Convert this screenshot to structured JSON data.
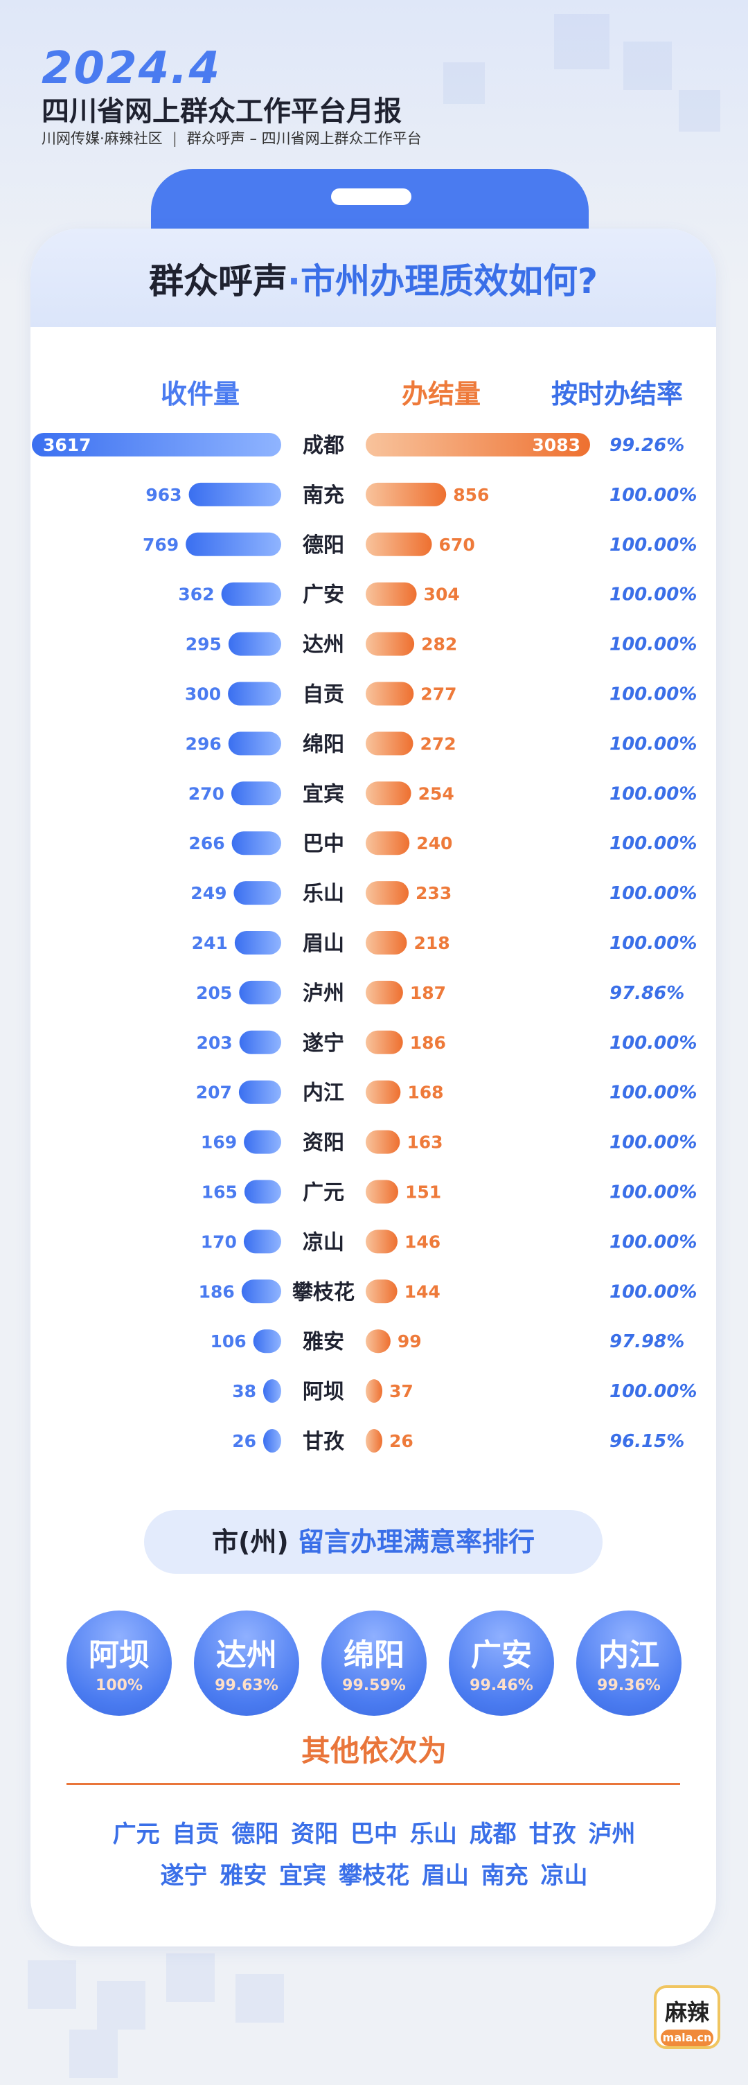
{
  "report": {
    "year_month": "2024.4",
    "title": "四川省网上群众工作平台月报",
    "subtitle_left": "川网传媒·麻辣社区",
    "subtitle_divider": "|",
    "subtitle_right": "群众呼声 – 四川省网上群众工作平台"
  },
  "card": {
    "title_part1": "群众呼声",
    "title_dot": "·",
    "title_part2": "市州办理质效如何?"
  },
  "colors": {
    "blue": "#4a7bf0",
    "orange": "#ee7a3a",
    "rate_blue": "#3a6fe8"
  },
  "chart_data": {
    "type": "bar",
    "column_headers": {
      "received": "收件量",
      "closed": "办结量",
      "rate": "按时办结率"
    },
    "categories": [
      "成都",
      "南充",
      "德阳",
      "广安",
      "达州",
      "自贡",
      "绵阳",
      "宜宾",
      "巴中",
      "乐山",
      "眉山",
      "泸州",
      "遂宁",
      "内江",
      "资阳",
      "广元",
      "凉山",
      "攀枝花",
      "雅安",
      "阿坝",
      "甘孜"
    ],
    "series": [
      {
        "name": "收件量",
        "values": [
          3617,
          963,
          769,
          362,
          295,
          300,
          296,
          270,
          266,
          249,
          241,
          205,
          203,
          207,
          169,
          165,
          170,
          186,
          106,
          38,
          26
        ]
      },
      {
        "name": "办结量",
        "values": [
          3083,
          856,
          670,
          304,
          282,
          277,
          272,
          254,
          240,
          233,
          218,
          187,
          186,
          168,
          163,
          151,
          146,
          144,
          99,
          37,
          26
        ]
      }
    ],
    "rates": [
      "99.26%",
      "100.00%",
      "100.00%",
      "100.00%",
      "100.00%",
      "100.00%",
      "100.00%",
      "100.00%",
      "100.00%",
      "100.00%",
      "100.00%",
      "97.86%",
      "100.00%",
      "100.00%",
      "100.00%",
      "100.00%",
      "100.00%",
      "100.00%",
      "97.98%",
      "100.00%",
      "96.15%"
    ]
  },
  "satisfaction": {
    "title_part1": "市(州)",
    "title_part2": "留言办理满意率排行",
    "top": [
      {
        "name": "阿坝",
        "rate": "100%"
      },
      {
        "name": "达州",
        "rate": "99.63%"
      },
      {
        "name": "绵阳",
        "rate": "99.59%"
      },
      {
        "name": "广安",
        "rate": "99.46%"
      },
      {
        "name": "内江",
        "rate": "99.36%"
      }
    ],
    "others_title": "其他依次为",
    "others_line1": "广元 自贡 德阳 资阳 巴中 乐山 成都 甘孜 泸州",
    "others_line2": "遂宁 雅安 宜宾 攀枝花 眉山 南充 凉山"
  },
  "logo": {
    "name": "麻辣",
    "domain": "mala.cn"
  }
}
